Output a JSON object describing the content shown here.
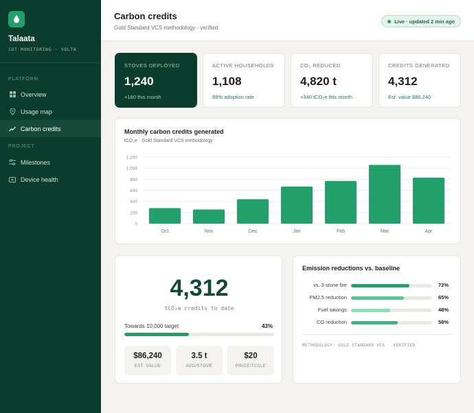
{
  "brand": {
    "name": "Talaata",
    "subtitle": "IOT MONITORING · VOLTA",
    "icon": "leaf-drop-icon"
  },
  "sidebar": {
    "sections": [
      {
        "label": "PLATFORM"
      },
      {
        "label": "PROJECT"
      }
    ],
    "items": [
      {
        "label": "Overview",
        "icon": "grid-icon",
        "active": false
      },
      {
        "label": "Usage map",
        "icon": "map-pin-icon",
        "active": false
      },
      {
        "label": "Carbon credits",
        "icon": "trend-icon",
        "active": true
      },
      {
        "label": "Milestones",
        "icon": "sliders-icon",
        "active": false
      },
      {
        "label": "Device health",
        "icon": "device-icon",
        "active": false
      }
    ]
  },
  "header": {
    "title": "Carbon credits",
    "subtitle": "Gold Standard VCS methodology · verified",
    "badge": "Live · updated 2 min ago"
  },
  "stats": [
    {
      "label": "STOVES DEPLOYED",
      "value": "1,240",
      "note": "+180 this month",
      "dark": true
    },
    {
      "label": "ACTIVE HOUSEHOLDS",
      "value": "1,108",
      "note": "89% adoption rate",
      "dark": false
    },
    {
      "label": "CO₂ REDUCED",
      "value": "4,820 t",
      "note": "+340 tCO₂e this month",
      "dark": false
    },
    {
      "label": "CREDITS GENERATED",
      "value": "4,312",
      "note": "Est. value $86,240",
      "dark": false
    }
  ],
  "chart_data": {
    "type": "bar",
    "title": "Monthly carbon credits generated",
    "subtitle": "tCO₂e · Gold Standard VCS methodology",
    "categories": [
      "Oct",
      "Nov",
      "Dec",
      "Jan",
      "Feb",
      "Mar",
      "Apr"
    ],
    "values": [
      280,
      255,
      440,
      670,
      770,
      1060,
      830
    ],
    "yticks": [
      0,
      200,
      400,
      600,
      800,
      1000,
      1200
    ],
    "ytick_labels": [
      "0",
      "200",
      "400",
      "600",
      "800",
      "1,000",
      "1,200"
    ],
    "ylim": [
      0,
      1200
    ],
    "grid": true,
    "color": "#22a06b"
  },
  "credits": {
    "value": "4,312",
    "caption": "tCO₂e credits to date",
    "target_label": "Towards 10,000 target",
    "target_pct": "43%",
    "target_fraction": 0.43,
    "minis": [
      {
        "value": "$86,240",
        "label": "EST. VALUE"
      },
      {
        "value": "3.5 t",
        "label": "AVG/STOVE"
      },
      {
        "value": "$20",
        "label": "PRICE/TCO₂E"
      }
    ]
  },
  "emissions": {
    "title": "Emission reductions vs. baseline",
    "rows": [
      {
        "label": "vs. 3-stone fire",
        "pct": "72%",
        "fraction": 0.72,
        "color": "#22a06b"
      },
      {
        "label": "PM2.5 reduction",
        "pct": "65%",
        "fraction": 0.65,
        "color": "#5cc49a"
      },
      {
        "label": "Fuel savings",
        "pct": "48%",
        "fraction": 0.48,
        "color": "#8fdcba"
      },
      {
        "label": "CO reduction",
        "pct": "58%",
        "fraction": 0.58,
        "color": "#3fb583"
      }
    ],
    "methodology": "METHODOLOGY: GOLD STANDARD VCS · VERIFIED"
  }
}
